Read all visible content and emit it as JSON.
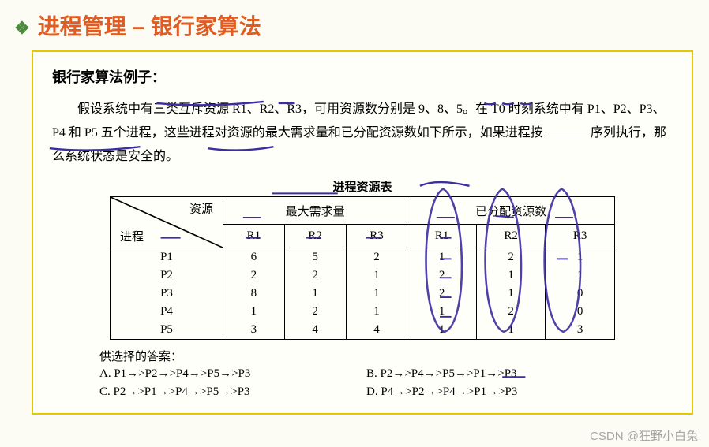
{
  "title": "进程管理 – 银行家算法",
  "example_heading": "银行家算法例子：",
  "problem_paragraph_prefix": "假设系统中有三类互斥资源 R1、R2、R3，可用资源数分别是 9、8、5。在 T0 时刻系统中有 P1、P2、P3、P4 和 P5 五个进程，这些进程对资源的最大需求量和已分配资源数如下所示，如果进程按",
  "problem_paragraph_suffix": "序列执行，那么系统状态是安全的。",
  "table_caption": "进程资源表",
  "diag_top_label": "资源",
  "diag_bottom_label": "进程",
  "col_group_max": "最大需求量",
  "col_group_alloc": "已分配资源数",
  "sub_cols": [
    "R1",
    "R2",
    "R3"
  ],
  "rows": [
    {
      "proc": "P1",
      "max": [
        6,
        5,
        2
      ],
      "alloc": [
        1,
        2,
        1
      ]
    },
    {
      "proc": "P2",
      "max": [
        2,
        2,
        1
      ],
      "alloc": [
        2,
        1,
        1
      ]
    },
    {
      "proc": "P3",
      "max": [
        8,
        1,
        1
      ],
      "alloc": [
        2,
        1,
        0
      ]
    },
    {
      "proc": "P4",
      "max": [
        1,
        2,
        1
      ],
      "alloc": [
        1,
        2,
        0
      ]
    },
    {
      "proc": "P5",
      "max": [
        3,
        4,
        4
      ],
      "alloc": [
        1,
        1,
        3
      ]
    }
  ],
  "answers_heading": "供选择的答案：",
  "answers": {
    "A": "A. P1→>P2→>P4→>P5→>P3",
    "B": "B. P2→>P4→>P5→>P1→>P3",
    "C": "C. P2→>P1→>P4→>P5→>P3",
    "D": "D. P4→>P2→>P4→>P1→>P3"
  },
  "watermark": "CSDN @狂野小白兔",
  "colors": {
    "title": "#e25c22",
    "bullet": "#4a8a3a",
    "border": "#e6c800",
    "annotation": "#3b2ea0",
    "bg": "#fdfcf4"
  },
  "annotations": {
    "type": "hand-drawn pen marks",
    "underlines": [
      "三类互斥资源",
      "R1",
      "9",
      "8",
      "5",
      "如果进程按",
      "最大需求量",
      "已分配资源数",
      "R1 (sub)",
      "R2 (sub)",
      "R3 (sub)",
      "P1",
      "6",
      "5",
      "2",
      "1",
      "2",
      "1",
      "1"
    ],
    "circles": [
      "已分配 R1 列",
      "已分配 R2 列",
      "已分配 R3 列"
    ]
  }
}
